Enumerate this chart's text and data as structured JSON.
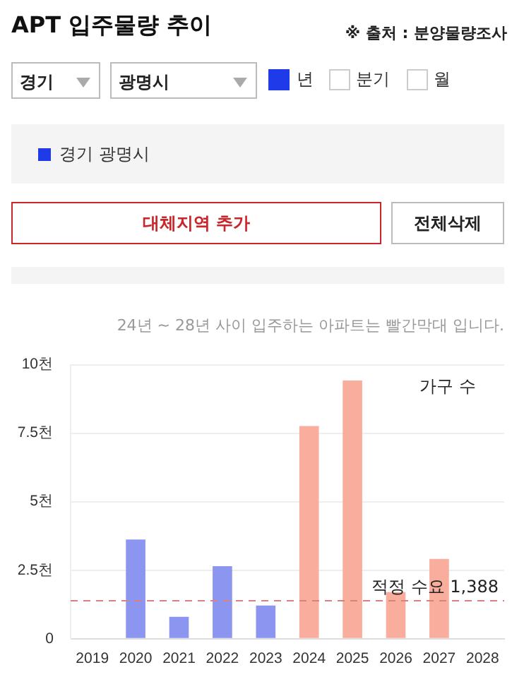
{
  "chart_data": {
    "type": "bar",
    "title": "APT 입주물량 추이",
    "subtitle": "24년 ~ 28년 사이 입주하는 아파트는 빨간막대 입니다.",
    "categories": [
      "2019",
      "2020",
      "2021",
      "2022",
      "2023",
      "2024",
      "2025",
      "2026",
      "2027",
      "2028"
    ],
    "series": [
      {
        "colors": [
          "#8c95f0",
          "#8c95f0",
          "#8c95f0",
          "#8c95f0",
          "#8c95f0",
          "#f8ad9d",
          "#f8ad9d",
          "#f8ad9d",
          "#f8ad9d",
          "#f8ad9d"
        ],
        "values": [
          null,
          3.62,
          0.8,
          2.65,
          1.21,
          7.76,
          9.42,
          1.7,
          2.91,
          null
        ]
      }
    ],
    "ylim": [
      0,
      10
    ],
    "yticks": [
      0,
      {
        "value": 2.5,
        "label": "2.5천"
      },
      {
        "value": 5,
        "label": "5천"
      },
      {
        "value": 7.5,
        "label": "7.5천"
      },
      {
        "value": 10,
        "label": "10천"
      }
    ],
    "grid": "y",
    "ref_lines": [
      {
        "axis": "y",
        "value": 1.388,
        "label": "적정 수요 1,388",
        "color": "#d98080",
        "line_style": "dashed"
      }
    ],
    "annotations": [
      "가구 수",
      "※ 출처 : 분양물량조사",
      "경기",
      "광명시",
      "년",
      "분기",
      "월",
      "대체지역 추가",
      "전체삭제",
      "경기 광명시"
    ]
  }
}
